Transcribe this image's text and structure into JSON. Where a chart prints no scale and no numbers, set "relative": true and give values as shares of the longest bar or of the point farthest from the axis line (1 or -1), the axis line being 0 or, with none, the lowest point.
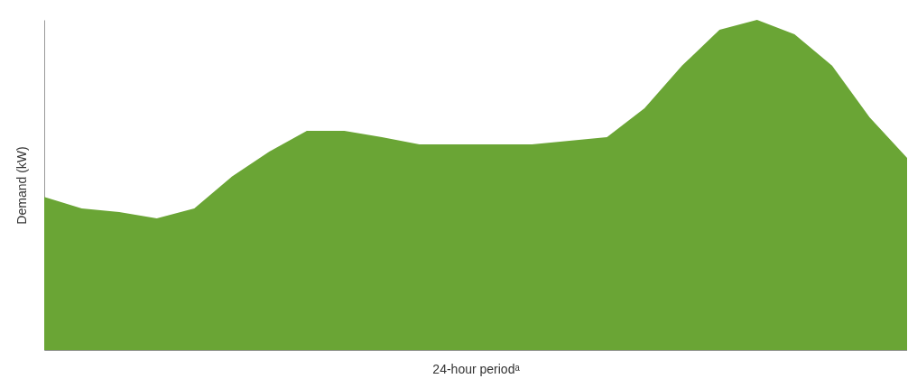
{
  "chart_data": {
    "type": "area",
    "xlabel": "24-hour periodᵃ",
    "ylabel": "Demand (kW)",
    "relative": true,
    "grid": false,
    "categories": [
      null,
      null,
      null,
      null,
      null,
      null,
      null,
      null,
      null,
      null,
      null,
      null,
      null,
      null,
      null,
      null,
      null,
      null,
      null,
      null,
      null,
      null,
      null,
      null
    ],
    "series": [
      {
        "color": "#6aa535",
        "values": [
          0.464,
          0.429,
          0.418,
          0.399,
          0.429,
          0.525,
          0.601,
          0.664,
          0.664,
          0.645,
          0.623,
          0.623,
          0.623,
          0.623,
          0.634,
          0.645,
          0.732,
          0.861,
          0.97,
          1,
          0.956,
          0.861,
          0.705,
          0.582
        ]
      }
    ]
  }
}
